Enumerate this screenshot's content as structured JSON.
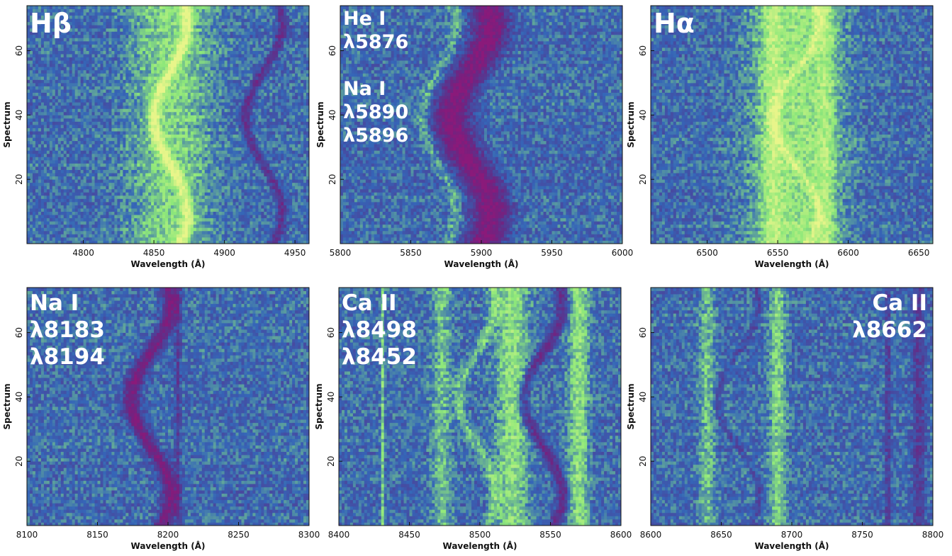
{
  "chart_data": [
    {
      "type": "heatmap",
      "annotation_lines": [
        "Hβ"
      ],
      "annotation_size": "big",
      "annotation_anchor": "left",
      "xlabel": "Wavelength (Å)",
      "ylabel": "Spectrum",
      "xlim": [
        4760,
        4960
      ],
      "ylim": [
        0,
        74
      ],
      "xticks": [
        4800,
        4850,
        4900,
        4950
      ],
      "yticks": [
        20,
        40,
        60
      ],
      "features": [
        {
          "kind": "emission",
          "center": 4862,
          "width": 20,
          "strength": 0.45
        },
        {
          "kind": "emission_s",
          "center": 4862,
          "amplitude": 12,
          "width": 3,
          "strength": 0.65
        },
        {
          "kind": "absorption_s",
          "center": 4928,
          "amplitude": 13,
          "width": 2.5,
          "strength": 0.55
        }
      ]
    },
    {
      "type": "heatmap",
      "annotation_lines": [
        "He I",
        "λ5876",
        "",
        "Na I",
        "λ5890",
        "λ5896"
      ],
      "annotation_size": "sm",
      "annotation_anchor": "left",
      "xlabel": "Wavelength (Å)",
      "ylabel": "Spectrum",
      "xlim": [
        5800,
        6000
      ],
      "ylim": [
        0,
        74
      ],
      "xticks": [
        5800,
        5850,
        5900,
        5950,
        6000
      ],
      "yticks": [
        20,
        40,
        60
      ],
      "features": [
        {
          "kind": "absorption_s",
          "center": 5893,
          "amplitude": 14,
          "width": 9,
          "strength": 0.95
        },
        {
          "kind": "emission_s",
          "center": 5870,
          "amplitude": 12,
          "width": 3,
          "strength": 0.3
        }
      ]
    },
    {
      "type": "heatmap",
      "annotation_lines": [
        "Hα"
      ],
      "annotation_size": "big",
      "annotation_anchor": "left",
      "xlabel": "Wavelength (Å)",
      "ylabel": "Spectrum",
      "xlim": [
        6460,
        6660
      ],
      "ylim": [
        0,
        74
      ],
      "xticks": [
        6500,
        6550,
        6600,
        6650
      ],
      "yticks": [
        20,
        40,
        60
      ],
      "features": [
        {
          "kind": "emission",
          "center": 6563,
          "width": 22,
          "strength": 0.55
        },
        {
          "kind": "emission",
          "center": 6546,
          "width": 5,
          "strength": 0.35
        },
        {
          "kind": "emission",
          "center": 6584,
          "width": 5,
          "strength": 0.35
        },
        {
          "kind": "emission_s",
          "center": 6563,
          "amplitude": 16,
          "width": 2.5,
          "strength": 0.35
        }
      ]
    },
    {
      "type": "heatmap",
      "annotation_lines": [
        "Na I",
        "λ8183",
        "λ8194"
      ],
      "annotation_size": "med",
      "annotation_anchor": "left",
      "xlabel": "Wavelength (Å)",
      "ylabel": "Spectrum",
      "xlim": [
        8100,
        8300
      ],
      "ylim": [
        0,
        74
      ],
      "xticks": [
        8100,
        8150,
        8200,
        8250,
        8300
      ],
      "yticks": [
        20,
        40,
        60
      ],
      "features": [
        {
          "kind": "absorption_s",
          "center": 8188,
          "amplitude": 14,
          "width": 4,
          "strength": 0.8
        },
        {
          "kind": "absorption_line",
          "center": 8207,
          "width": 1.5,
          "strength": 0.35
        }
      ]
    },
    {
      "type": "heatmap",
      "annotation_lines": [
        "Ca II",
        "λ8498",
        "λ8452"
      ],
      "annotation_size": "med",
      "annotation_anchor": "left",
      "xlabel": "Wavelength (Å)",
      "ylabel": "Spectrum",
      "xlim": [
        8400,
        8600
      ],
      "ylim": [
        0,
        74
      ],
      "xticks": [
        8400,
        8450,
        8500,
        8550,
        8600
      ],
      "yticks": [
        20,
        40,
        60
      ],
      "features": [
        {
          "kind": "emission",
          "center": 8473,
          "width": 5,
          "strength": 0.35
        },
        {
          "kind": "emission",
          "center": 8523,
          "width": 8,
          "strength": 0.5
        },
        {
          "kind": "emission",
          "center": 8570,
          "width": 5,
          "strength": 0.5
        },
        {
          "kind": "emission_s",
          "center": 8498,
          "amplitude": 13,
          "width": 3,
          "strength": 0.35
        },
        {
          "kind": "absorption_s",
          "center": 8545,
          "amplitude": 14,
          "width": 3,
          "strength": 0.6
        },
        {
          "kind": "emission_line",
          "center": 8431,
          "width": 0.8,
          "strength": 0.4
        }
      ]
    },
    {
      "type": "heatmap",
      "annotation_lines": [
        "Ca II",
        "λ8662"
      ],
      "annotation_size": "med",
      "annotation_anchor": "right",
      "xlabel": "Wavelength (Å)",
      "ylabel": "Spectrum",
      "xlim": [
        8600,
        8800
      ],
      "ylim": [
        0,
        74
      ],
      "xticks": [
        8600,
        8650,
        8700,
        8750,
        8800
      ],
      "yticks": [
        20,
        40,
        60
      ],
      "features": [
        {
          "kind": "emission",
          "center": 8640,
          "width": 4,
          "strength": 0.35
        },
        {
          "kind": "emission",
          "center": 8690,
          "width": 4,
          "strength": 0.45
        },
        {
          "kind": "emission_s",
          "center": 8662,
          "amplitude": 13,
          "width": 3,
          "strength": 0.35
        },
        {
          "kind": "absorption_s",
          "center": 8662,
          "amplitude": 14,
          "width": 2.5,
          "strength": 0.55
        },
        {
          "kind": "absorption_line",
          "center": 8768,
          "width": 1.2,
          "strength": 0.4
        },
        {
          "kind": "absorption_line",
          "center": 8790,
          "width": 3,
          "strength": 0.4
        }
      ]
    }
  ],
  "colors": {
    "background_low": "#2b3a8f",
    "background_mid": "#3566b8",
    "emission": "#8ee87a",
    "emission_peak": "#e8f58a",
    "absorption": "#8a1a7a",
    "annotation_text": "#ffffff",
    "axis": "#111111"
  }
}
